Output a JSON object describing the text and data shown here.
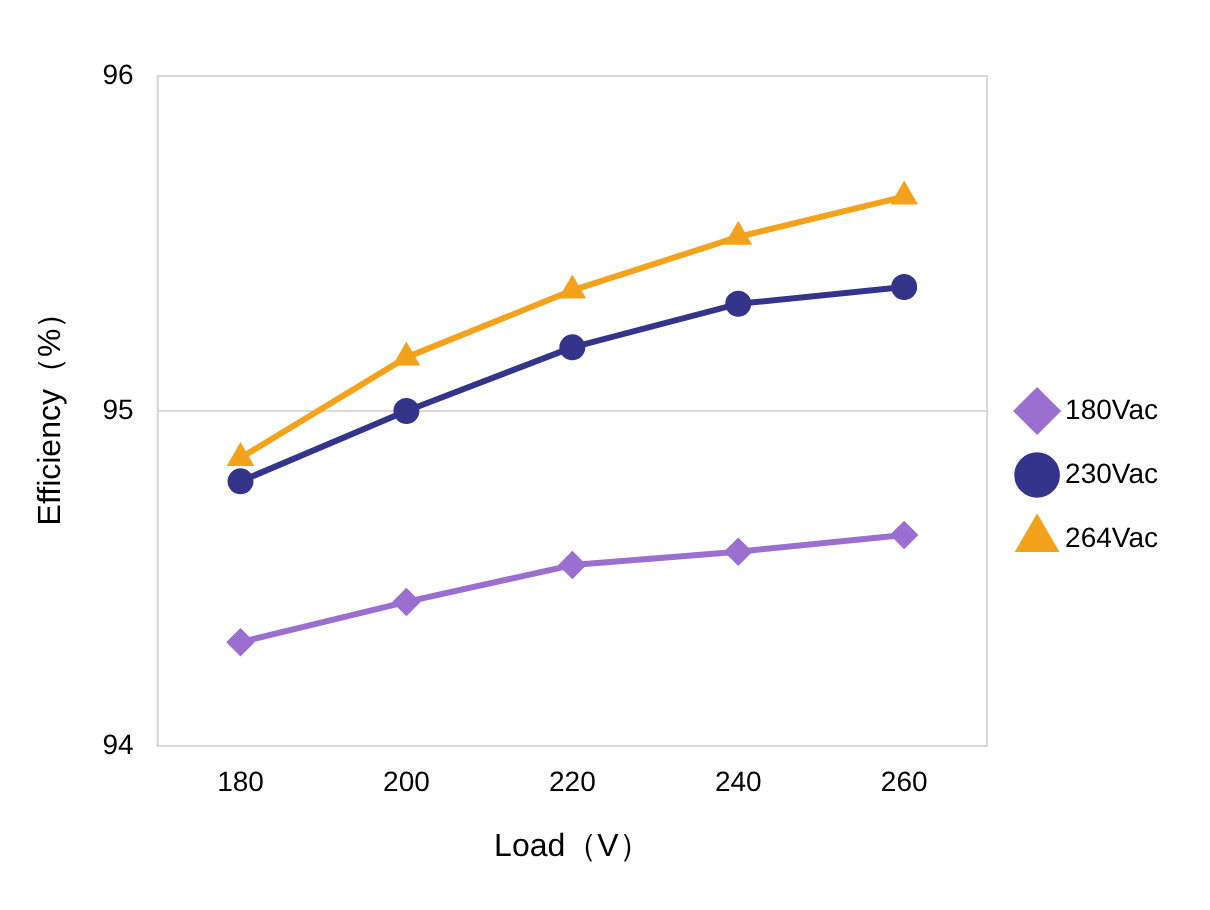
{
  "chart_data": {
    "type": "line",
    "xlabel": "Load（V）",
    "ylabel": "Efficiency（%）",
    "categories": [
      "180",
      "200",
      "220",
      "240",
      "260"
    ],
    "series": [
      {
        "name": "180Vac",
        "color": "#9b6fcf",
        "marker": "diamond",
        "values": [
          94.31,
          94.43,
          94.54,
          94.58,
          94.63
        ]
      },
      {
        "name": "230Vac",
        "color": "#33348a",
        "marker": "circle",
        "values": [
          94.79,
          95.0,
          95.19,
          95.32,
          95.37
        ]
      },
      {
        "name": "264Vac",
        "color": "#f4a11c",
        "marker": "triangle",
        "values": [
          94.86,
          95.16,
          95.36,
          95.52,
          95.64
        ]
      }
    ],
    "ylim": [
      94,
      96
    ],
    "yticks": [
      94,
      95,
      96
    ],
    "grid": "y",
    "legend": "right"
  }
}
